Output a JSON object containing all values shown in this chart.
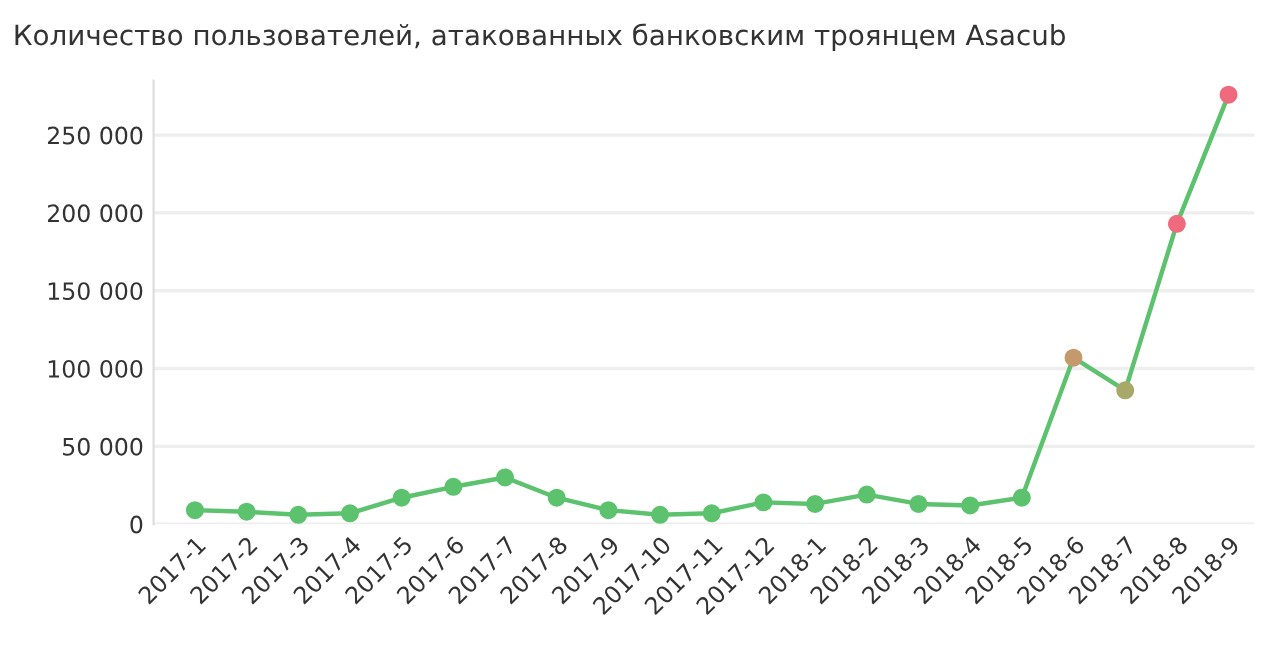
{
  "chart_data": {
    "type": "line",
    "title": "Количество пользователей, атакованных банковским троянцем Asacub",
    "categories": [
      "2017-1",
      "2017-2",
      "2017-3",
      "2017-4",
      "2017-5",
      "2017-6",
      "2017-7",
      "2017-8",
      "2017-9",
      "2017-10",
      "2017-11",
      "2017-12",
      "2018-1",
      "2018-2",
      "2018-3",
      "2018-4",
      "2018-5",
      "2018-6",
      "2018-7",
      "2018-8",
      "2018-9"
    ],
    "series": [
      {
        "color": "#5cc26e",
        "values": [
          9000,
          8000,
          6000,
          7000,
          17000,
          24000,
          30000,
          17000,
          9000,
          6000,
          7000,
          14000,
          13000,
          19000,
          13000,
          12000,
          17000,
          107000,
          86000,
          193000,
          276000
        ],
        "colors": [
          "#5cc26e",
          "#5cc26e",
          "#5cc26e",
          "#5cc26e",
          "#5cc26e",
          "#5cc26e",
          "#5cc26e",
          "#5cc26e",
          "#5cc26e",
          "#5cc26e",
          "#5cc26e",
          "#5cc26e",
          "#5cc26e",
          "#5cc26e",
          "#5cc26e",
          "#5cc26e",
          "#5cc26e",
          "#c49a6c",
          "#a8a86a",
          "#ee6a7c",
          "#ee6a7c"
        ]
      }
    ],
    "ylim": [
      0,
      285000
    ],
    "yticks": [
      {
        "value": 0,
        "label": "0"
      },
      {
        "value": 50000,
        "label": "50 000"
      },
      {
        "value": 100000,
        "label": "100 000"
      },
      {
        "value": 150000,
        "label": "150 000"
      },
      {
        "value": 200000,
        "label": "200 000"
      },
      {
        "value": 250000,
        "label": "250 000"
      }
    ],
    "grid": "y",
    "marker": "circle",
    "line_style": "solid",
    "legend": false
  }
}
